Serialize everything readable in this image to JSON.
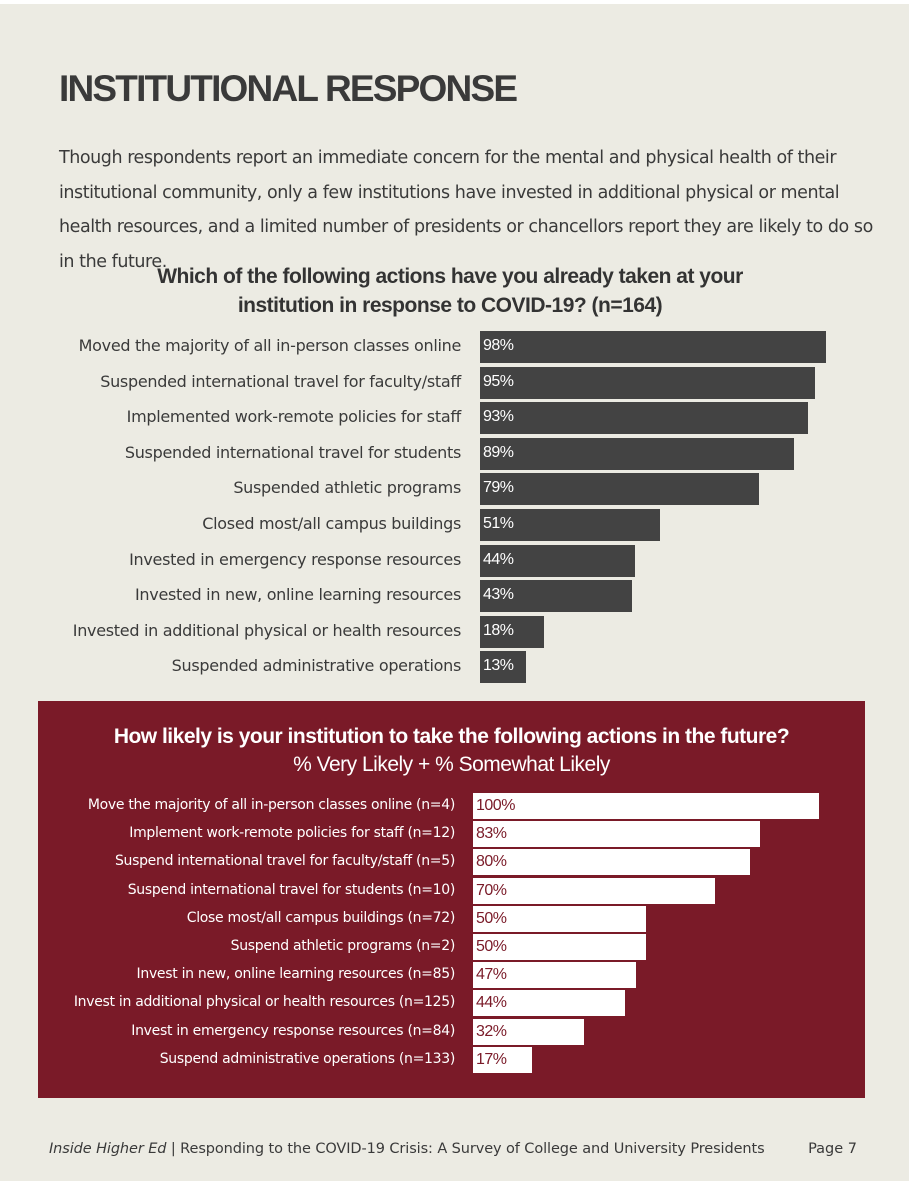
{
  "header": {
    "title": "INSTITUTIONAL RESPONSE",
    "intro": "Though respondents report an immediate concern for the mental and physical health of their institutional community, only a few institutions have invested in additional physical or mental health resources, and a limited number of presidents or chancellors report they are likely to do so in the future."
  },
  "chart_data": [
    {
      "type": "bar",
      "orientation": "horizontal",
      "title": "Which of the following actions have you already taken at your institution in response to COVID-19? (n=164)",
      "categories": [
        "Moved the majority of all in-person classes online",
        "Suspended international travel for faculty/staff",
        "Implemented work-remote policies for staff",
        "Suspended international travel for students",
        "Suspended athletic programs",
        "Closed most/all campus buildings",
        "Invested in emergency response resources",
        "Invested in new, online learning resources",
        "Invested in additional physical or health resources",
        "Suspended administrative operations"
      ],
      "values": [
        98,
        95,
        93,
        89,
        79,
        51,
        44,
        43,
        18,
        13
      ],
      "value_labels": [
        "98%",
        "95%",
        "93%",
        "89%",
        "79%",
        "51%",
        "44%",
        "43%",
        "18%",
        "13%"
      ],
      "xlim": [
        0,
        100
      ],
      "bar_color": "#434343"
    },
    {
      "type": "bar",
      "orientation": "horizontal",
      "title": "How likely is your institution to take the following actions in the future?",
      "subtitle": "% Very Likely + % Somewhat Likely",
      "categories": [
        "Move the majority of all in-person classes online (n=4)",
        "Implement work-remote policies for staff (n=12)",
        "Suspend international travel for faculty/staff (n=5)",
        "Suspend international travel for students (n=10)",
        "Close most/all campus buildings (n=72)",
        "Suspend athletic programs (n=2)",
        "Invest in new, online learning resources (n=85)",
        "Invest in additional physical or health resources (n=125)",
        "Invest in emergency response resources (n=84)",
        "Suspend administrative operations (n=133)"
      ],
      "values": [
        100,
        83,
        80,
        70,
        50,
        50,
        47,
        44,
        32,
        17
      ],
      "value_labels": [
        "100%",
        "83%",
        "80%",
        "70%",
        "50%",
        "50%",
        "47%",
        "44%",
        "32%",
        "17%"
      ],
      "xlim": [
        0,
        100
      ],
      "bar_color": "#ffffff",
      "panel_color": "#7a1a28"
    }
  ],
  "footer": {
    "publication": "Inside Higher Ed",
    "report": " | Responding to the COVID-19 Crisis: A Survey of College and University Presidents",
    "page": "Page 7"
  }
}
